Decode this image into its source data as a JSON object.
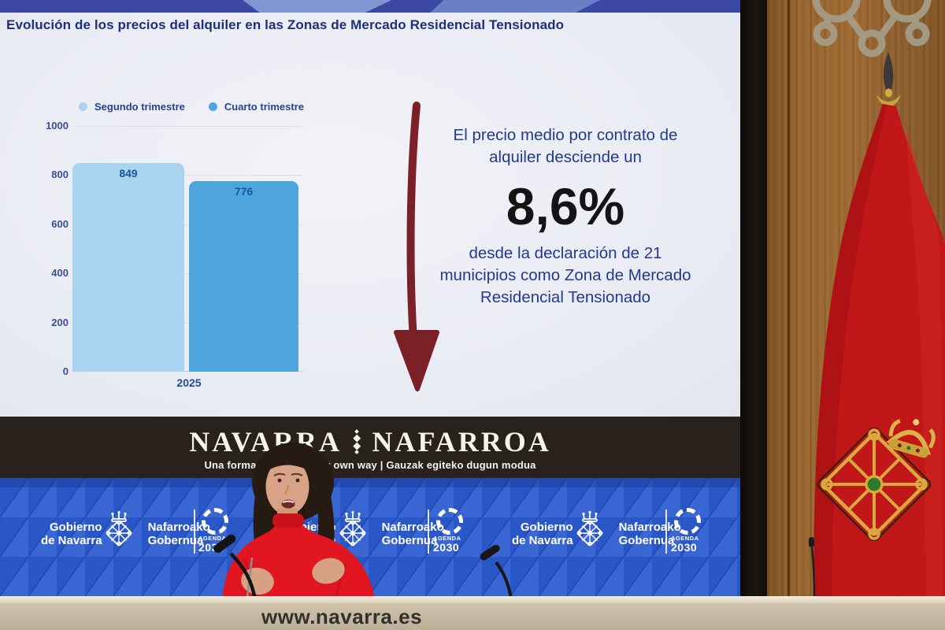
{
  "slide": {
    "title": "Evolución de los precios del alquiler en las Zonas de Mercado Residencial Tensionado",
    "callout": {
      "line1": "El precio medio por contrato de alquiler desciende un",
      "percentage": "8,6%",
      "line2": "desde la declaración de 21 municipios como Zona de Mercado Residencial Tensionado"
    }
  },
  "chart_data": {
    "type": "bar",
    "title": "Evolución de los precios del alquiler en las Zonas de Mercado Residencial Tensionado",
    "categories": [
      "2025"
    ],
    "series": [
      {
        "name": "Segundo trimestre",
        "values": [
          849
        ],
        "color": "#a9d4ef"
      },
      {
        "name": "Cuarto trimestre",
        "values": [
          776
        ],
        "color": "#4fa6df"
      }
    ],
    "ylim": [
      0,
      1000
    ],
    "yticks": [
      0,
      200,
      400,
      600,
      800,
      1000
    ],
    "grid": true,
    "legend_position": "top",
    "xlabel": "",
    "ylabel": ""
  },
  "banner": {
    "navarra": "NAVARRA",
    "nafarroa": "NAFARROA",
    "tagline": "Una forma de hacer | Our own way | Gauzak egiteko dugun modua"
  },
  "gov": {
    "es_line1": "Gobierno",
    "es_line2": "de Navarra",
    "eu_line1": "Nafarroako",
    "eu_line2": "Gobernua"
  },
  "agenda": {
    "word": "AGENDA",
    "year": "2030"
  },
  "podium": {
    "url": "www.navarra.es"
  },
  "colors": {
    "slide_navy": "#1d2f7d",
    "arrow_maroon": "#7a2026",
    "bar_light": "#a9d4ef",
    "bar_dark": "#4fa6df",
    "band_blue": "#2a57c7",
    "banner_black": "#29221c",
    "flag_red": "#c11718",
    "sweater_red": "#e11620",
    "podium_beige": "#c7bca4"
  }
}
